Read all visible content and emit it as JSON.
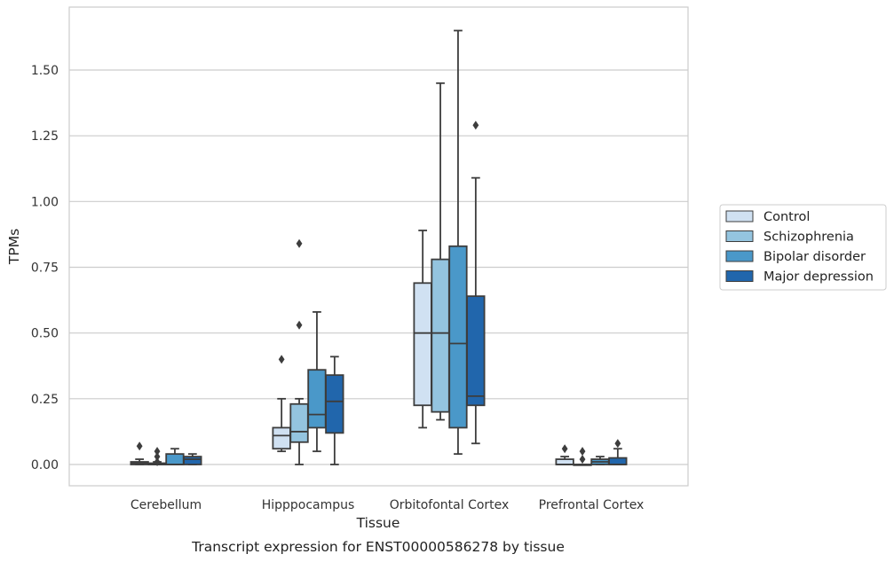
{
  "chart_data": {
    "type": "box",
    "xlabel": "Tissue",
    "ylabel": "TPMs",
    "caption": "Transcript expression for ENST00000586278 by tissue",
    "ylim": [
      -0.08,
      1.74
    ],
    "yticks": [
      "0.00",
      "0.25",
      "0.50",
      "0.75",
      "1.00",
      "1.25",
      "1.50"
    ],
    "ytick_values": [
      0,
      0.25,
      0.5,
      0.75,
      1.0,
      1.25,
      1.5
    ],
    "grid": "horizontal",
    "legend_position": "right",
    "categories": [
      "Cerebellum",
      "Hipppocampus",
      "Orbitofontal Cortex",
      "Prefrontal Cortex"
    ],
    "series": [
      {
        "name": "Control",
        "color": "#d0e1f2",
        "boxes": [
          {
            "whislo": 0.0,
            "q1": 0.0,
            "med": 0.005,
            "q3": 0.01,
            "whishi": 0.02,
            "fliers": [
              0.07
            ]
          },
          {
            "whislo": 0.05,
            "q1": 0.06,
            "med": 0.11,
            "q3": 0.14,
            "whishi": 0.25,
            "fliers": [
              0.4
            ]
          },
          {
            "whislo": 0.14,
            "q1": 0.225,
            "med": 0.5,
            "q3": 0.69,
            "whishi": 0.89,
            "fliers": []
          },
          {
            "whislo": 0.0,
            "q1": 0.0,
            "med": 0.0,
            "q3": 0.02,
            "whishi": 0.03,
            "fliers": [
              0.06
            ]
          }
        ]
      },
      {
        "name": "Schizophrenia",
        "color": "#94c4df",
        "boxes": [
          {
            "whislo": 0.0,
            "q1": 0.0,
            "med": 0.0,
            "q3": 0.005,
            "whishi": 0.01,
            "fliers": [
              0.05,
              0.03,
              0.01
            ]
          },
          {
            "whislo": 0.0,
            "q1": 0.085,
            "med": 0.125,
            "q3": 0.23,
            "whishi": 0.25,
            "fliers": [
              0.53,
              0.84
            ]
          },
          {
            "whislo": 0.17,
            "q1": 0.2,
            "med": 0.5,
            "q3": 0.78,
            "whishi": 1.45,
            "fliers": []
          },
          {
            "whislo": 0.0,
            "q1": 0.0,
            "med": 0.0,
            "q3": 0.0,
            "whishi": 0.0,
            "fliers": [
              0.05,
              0.02
            ]
          }
        ]
      },
      {
        "name": "Bipolar disorder",
        "color": "#4a98c9",
        "boxes": [
          {
            "whislo": 0.0,
            "q1": 0.0,
            "med": 0.0,
            "q3": 0.04,
            "whishi": 0.06,
            "fliers": []
          },
          {
            "whislo": 0.05,
            "q1": 0.14,
            "med": 0.19,
            "q3": 0.36,
            "whishi": 0.58,
            "fliers": []
          },
          {
            "whislo": 0.04,
            "q1": 0.14,
            "med": 0.46,
            "q3": 0.83,
            "whishi": 1.65,
            "fliers": []
          },
          {
            "whislo": 0.0,
            "q1": 0.0,
            "med": 0.01,
            "q3": 0.02,
            "whishi": 0.03,
            "fliers": []
          }
        ]
      },
      {
        "name": "Major depression",
        "color": "#2166ac",
        "boxes": [
          {
            "whislo": 0.0,
            "q1": 0.0,
            "med": 0.02,
            "q3": 0.03,
            "whishi": 0.04,
            "fliers": []
          },
          {
            "whislo": 0.0,
            "q1": 0.12,
            "med": 0.24,
            "q3": 0.34,
            "whishi": 0.41,
            "fliers": []
          },
          {
            "whislo": 0.08,
            "q1": 0.225,
            "med": 0.26,
            "q3": 0.64,
            "whishi": 1.09,
            "fliers": [
              1.29
            ]
          },
          {
            "whislo": 0.0,
            "q1": 0.0,
            "med": 0.0,
            "q3": 0.025,
            "whishi": 0.06,
            "fliers": [
              0.08
            ]
          }
        ]
      }
    ]
  }
}
